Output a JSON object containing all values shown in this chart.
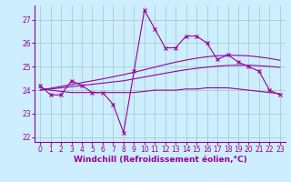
{
  "bg_color": "#cceeff",
  "line_color": "#990099",
  "grid_color": "#aacccc",
  "ylim": [
    21.8,
    27.6
  ],
  "xlim": [
    -0.5,
    23.5
  ],
  "yticks": [
    22,
    23,
    24,
    25,
    26,
    27
  ],
  "xticks": [
    0,
    1,
    2,
    3,
    4,
    5,
    6,
    7,
    8,
    9,
    10,
    11,
    12,
    13,
    14,
    15,
    16,
    17,
    18,
    19,
    20,
    21,
    22,
    23
  ],
  "hours": [
    0,
    1,
    2,
    3,
    4,
    5,
    6,
    7,
    8,
    9,
    10,
    11,
    12,
    13,
    14,
    15,
    16,
    17,
    18,
    19,
    20,
    21,
    22,
    23
  ],
  "line1": [
    24.2,
    23.8,
    23.8,
    24.4,
    24.2,
    23.9,
    23.9,
    23.4,
    22.2,
    24.8,
    27.4,
    26.6,
    25.8,
    25.8,
    26.3,
    26.3,
    26.0,
    25.3,
    25.5,
    25.2,
    25.0,
    24.8,
    24.0,
    23.8
  ],
  "trend_flat": [
    24.1,
    24.0,
    23.95,
    23.9,
    23.9,
    23.9,
    23.9,
    23.9,
    23.9,
    23.9,
    23.95,
    24.0,
    24.0,
    24.0,
    24.05,
    24.05,
    24.1,
    24.1,
    24.1,
    24.05,
    24.0,
    23.95,
    23.9,
    23.85
  ],
  "trend_up1": [
    24.0,
    24.05,
    24.1,
    24.15,
    24.2,
    24.25,
    24.3,
    24.35,
    24.4,
    24.48,
    24.56,
    24.64,
    24.72,
    24.8,
    24.87,
    24.93,
    24.98,
    25.02,
    25.05,
    25.06,
    25.06,
    25.04,
    25.01,
    24.97
  ],
  "trend_up2": [
    24.0,
    24.08,
    24.16,
    24.24,
    24.32,
    24.4,
    24.48,
    24.57,
    24.66,
    24.76,
    24.87,
    24.98,
    25.09,
    25.19,
    25.28,
    25.36,
    25.42,
    25.46,
    25.48,
    25.48,
    25.46,
    25.41,
    25.35,
    25.27
  ],
  "xlabel": "Windchill (Refroidissement éolien,°C)",
  "tick_fontsize": 5.5,
  "xlabel_fontsize": 6.5
}
